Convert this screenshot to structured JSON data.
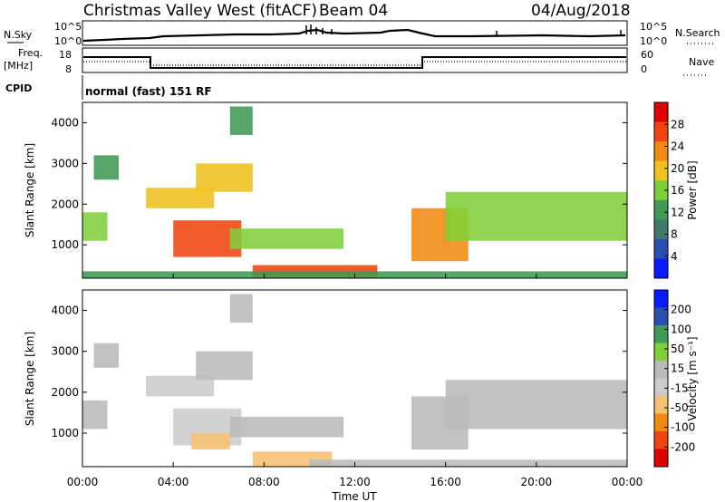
{
  "header": {
    "title": "Christmas Valley West (fitACF)",
    "beam": "Beam 04",
    "date": "04/Aug/2018"
  },
  "strip_labels": {
    "nsky": "N.Sky",
    "nsky_ticks": [
      "10^5",
      "10^0"
    ],
    "nsearch": "N.Search",
    "nsearch_ticks": [
      "10^5",
      "10^0"
    ],
    "freq": [
      "Freq.",
      "[MHz]"
    ],
    "freq_ticks": [
      "18",
      "8"
    ],
    "nave": "Nave",
    "nave_ticks": [
      "60",
      "0"
    ],
    "cpid": "CPID",
    "cpid_value": "normal (fast) 151 RF"
  },
  "colors": {
    "power_scale": [
      "#0a1aff",
      "#2a4fb0",
      "#3f7a6a",
      "#3f9a55",
      "#7fcf3a",
      "#f0c020",
      "#f08a10",
      "#f04510",
      "#e00000"
    ],
    "velocity_scale": [
      "#e00000",
      "#f04510",
      "#f08a10",
      "#f5c070",
      "#cccccc",
      "#b9b9b9",
      "#7fcf3a",
      "#3f9a55",
      "#2a4fb0",
      "#0a1aff"
    ]
  },
  "chart_data": [
    {
      "type": "heatmap",
      "title": "Power",
      "xlabel": "Time UT",
      "ylabel": "Slant Range [km]",
      "x_ticks": [
        "00:00",
        "04:00",
        "08:00",
        "12:00",
        "16:00",
        "20:00",
        "00:00"
      ],
      "y_ticks": [
        "1000",
        "2000",
        "3000",
        "4000"
      ],
      "xlim_hours": [
        0,
        24
      ],
      "ylim_km": [
        180,
        4500
      ],
      "colorbar_label": "Power [dB]",
      "colorbar_ticks": [
        "28",
        "24",
        "20",
        "16",
        "12",
        "8",
        "4"
      ],
      "colorbar_range": [
        0,
        30
      ],
      "regions": [
        {
          "t0": 0.0,
          "t1": 1.1,
          "r0": 1100,
          "r1": 1800,
          "level": 14
        },
        {
          "t0": 0.5,
          "t1": 1.6,
          "r0": 2600,
          "r1": 3200,
          "level": 12
        },
        {
          "t0": 2.8,
          "t1": 5.8,
          "r0": 1900,
          "r1": 2400,
          "level": 18
        },
        {
          "t0": 4.0,
          "t1": 7.0,
          "r0": 700,
          "r1": 1600,
          "level": 26
        },
        {
          "t0": 5.0,
          "t1": 7.5,
          "r0": 2300,
          "r1": 3000,
          "level": 18
        },
        {
          "t0": 6.5,
          "t1": 7.5,
          "r0": 3700,
          "r1": 4400,
          "level": 12
        },
        {
          "t0": 6.5,
          "t1": 11.5,
          "r0": 900,
          "r1": 1400,
          "level": 16
        },
        {
          "t0": 7.5,
          "t1": 13.0,
          "r0": 180,
          "r1": 500,
          "level": 24
        },
        {
          "t0": 14.5,
          "t1": 17.0,
          "r0": 600,
          "r1": 1900,
          "level": 22
        },
        {
          "t0": 16.0,
          "t1": 24.0,
          "r0": 1100,
          "r1": 2300,
          "level": 16
        },
        {
          "t0": 0.0,
          "t1": 24.0,
          "r0": 180,
          "r1": 350,
          "level": 10
        }
      ]
    },
    {
      "type": "heatmap",
      "title": "Velocity",
      "xlabel": "Time UT",
      "ylabel": "Slant Range [km]",
      "x_ticks": [
        "00:00",
        "04:00",
        "08:00",
        "12:00",
        "16:00",
        "20:00",
        "00:00"
      ],
      "y_ticks": [
        "1000",
        "2000",
        "3000",
        "4000"
      ],
      "xlim_hours": [
        0,
        24
      ],
      "ylim_km": [
        180,
        4500
      ],
      "colorbar_label": "Velocity [m s⁻¹]",
      "colorbar_ticks": [
        "200",
        "100",
        "50",
        "15",
        "-15",
        "-50",
        "-100",
        "-200"
      ],
      "colorbar_range": [
        -250,
        250
      ],
      "regions": [
        {
          "t0": 0.0,
          "t1": 1.1,
          "r0": 1100,
          "r1": 1800,
          "level": 0
        },
        {
          "t0": 0.5,
          "t1": 1.6,
          "r0": 2600,
          "r1": 3200,
          "level": 0
        },
        {
          "t0": 2.8,
          "t1": 5.8,
          "r0": 1900,
          "r1": 2400,
          "level": -10
        },
        {
          "t0": 4.0,
          "t1": 7.0,
          "r0": 700,
          "r1": 1600,
          "level": -30
        },
        {
          "t0": 4.8,
          "t1": 6.5,
          "r0": 600,
          "r1": 1000,
          "level": -90
        },
        {
          "t0": 5.0,
          "t1": 7.5,
          "r0": 2300,
          "r1": 3000,
          "level": 0
        },
        {
          "t0": 6.5,
          "t1": 7.5,
          "r0": 3700,
          "r1": 4400,
          "level": 0
        },
        {
          "t0": 6.5,
          "t1": 11.5,
          "r0": 900,
          "r1": 1400,
          "level": 0
        },
        {
          "t0": 7.5,
          "t1": 11.0,
          "r0": 180,
          "r1": 550,
          "level": -70
        },
        {
          "t0": 10.0,
          "t1": 14.0,
          "r0": 180,
          "r1": 350,
          "level": 30
        },
        {
          "t0": 14.5,
          "t1": 17.0,
          "r0": 600,
          "r1": 1900,
          "level": 0
        },
        {
          "t0": 16.0,
          "t1": 24.0,
          "r0": 1100,
          "r1": 2300,
          "level": 0
        },
        {
          "t0": 14.0,
          "t1": 24.0,
          "r0": 180,
          "r1": 350,
          "level": 30
        }
      ]
    }
  ]
}
